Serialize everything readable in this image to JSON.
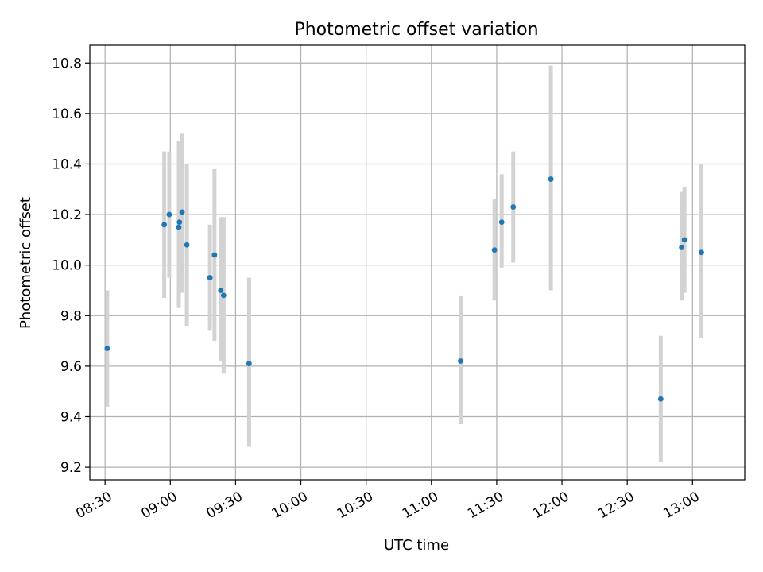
{
  "chart_data": {
    "type": "scatter",
    "title": "Photometric offset variation",
    "xlabel": "UTC time",
    "ylabel": "Photometric offset",
    "grid": true,
    "xlim_minutes": [
      503,
      804
    ],
    "ylim": [
      9.15,
      10.87
    ],
    "x_ticks": [
      {
        "minutes": 510,
        "label": "08:30"
      },
      {
        "minutes": 540,
        "label": "09:00"
      },
      {
        "minutes": 570,
        "label": "09:30"
      },
      {
        "minutes": 600,
        "label": "10:00"
      },
      {
        "minutes": 630,
        "label": "10:30"
      },
      {
        "minutes": 660,
        "label": "11:00"
      },
      {
        "minutes": 690,
        "label": "11:30"
      },
      {
        "minutes": 720,
        "label": "12:00"
      },
      {
        "minutes": 750,
        "label": "12:30"
      },
      {
        "minutes": 780,
        "label": "13:00"
      }
    ],
    "y_ticks": [
      {
        "value": 9.2,
        "label": "9.2"
      },
      {
        "value": 9.4,
        "label": "9.4"
      },
      {
        "value": 9.6,
        "label": "9.6"
      },
      {
        "value": 9.8,
        "label": "9.8"
      },
      {
        "value": 10.0,
        "label": "10.0"
      },
      {
        "value": 10.2,
        "label": "10.2"
      },
      {
        "value": 10.4,
        "label": "10.4"
      },
      {
        "value": 10.6,
        "label": "10.6"
      },
      {
        "value": 10.8,
        "label": "10.8"
      }
    ],
    "points": [
      {
        "time": "08:31",
        "minutes": 511.0,
        "offset": 9.67,
        "err_low": 9.44,
        "err_high": 9.9
      },
      {
        "time": "08:57",
        "minutes": 537.2,
        "offset": 10.16,
        "err_low": 9.87,
        "err_high": 10.45
      },
      {
        "time": "08:59",
        "minutes": 539.5,
        "offset": 10.2,
        "err_low": 9.95,
        "err_high": 10.45
      },
      {
        "time": "09:03",
        "minutes": 543.9,
        "offset": 10.15,
        "err_low": 9.83,
        "err_high": 10.49
      },
      {
        "time": "09:04",
        "minutes": 544.2,
        "offset": 10.17,
        "err_low": 9.89,
        "err_high": 10.45
      },
      {
        "time": "09:05",
        "minutes": 545.4,
        "offset": 10.21,
        "err_low": 9.89,
        "err_high": 10.52
      },
      {
        "time": "09:08",
        "minutes": 547.6,
        "offset": 10.08,
        "err_low": 9.76,
        "err_high": 10.4
      },
      {
        "time": "09:18",
        "minutes": 558.2,
        "offset": 9.95,
        "err_low": 9.74,
        "err_high": 10.16
      },
      {
        "time": "09:20",
        "minutes": 560.3,
        "offset": 10.04,
        "err_low": 9.7,
        "err_high": 10.38
      },
      {
        "time": "09:23",
        "minutes": 563.2,
        "offset": 9.9,
        "err_low": 9.62,
        "err_high": 10.19
      },
      {
        "time": "09:24",
        "minutes": 564.5,
        "offset": 9.88,
        "err_low": 9.57,
        "err_high": 10.19
      },
      {
        "time": "09:36",
        "minutes": 576.2,
        "offset": 9.61,
        "err_low": 9.28,
        "err_high": 9.95
      },
      {
        "time": "11:13",
        "minutes": 673.4,
        "offset": 9.62,
        "err_low": 9.37,
        "err_high": 9.88
      },
      {
        "time": "11:29",
        "minutes": 689.0,
        "offset": 10.06,
        "err_low": 9.86,
        "err_high": 10.26
      },
      {
        "time": "11:32",
        "minutes": 692.3,
        "offset": 10.17,
        "err_low": 9.99,
        "err_high": 10.36
      },
      {
        "time": "11:37",
        "minutes": 697.6,
        "offset": 10.23,
        "err_low": 10.01,
        "err_high": 10.45
      },
      {
        "time": "11:55",
        "minutes": 714.9,
        "offset": 10.34,
        "err_low": 9.9,
        "err_high": 10.79
      },
      {
        "time": "12:45",
        "minutes": 765.4,
        "offset": 9.47,
        "err_low": 9.22,
        "err_high": 9.72
      },
      {
        "time": "12:55",
        "minutes": 775.0,
        "offset": 10.07,
        "err_low": 9.86,
        "err_high": 10.29
      },
      {
        "time": "12:56",
        "minutes": 776.3,
        "offset": 10.1,
        "err_low": 9.89,
        "err_high": 10.31
      },
      {
        "time": "13:04",
        "minutes": 784.1,
        "offset": 10.05,
        "err_low": 9.71,
        "err_high": 10.4
      }
    ]
  }
}
